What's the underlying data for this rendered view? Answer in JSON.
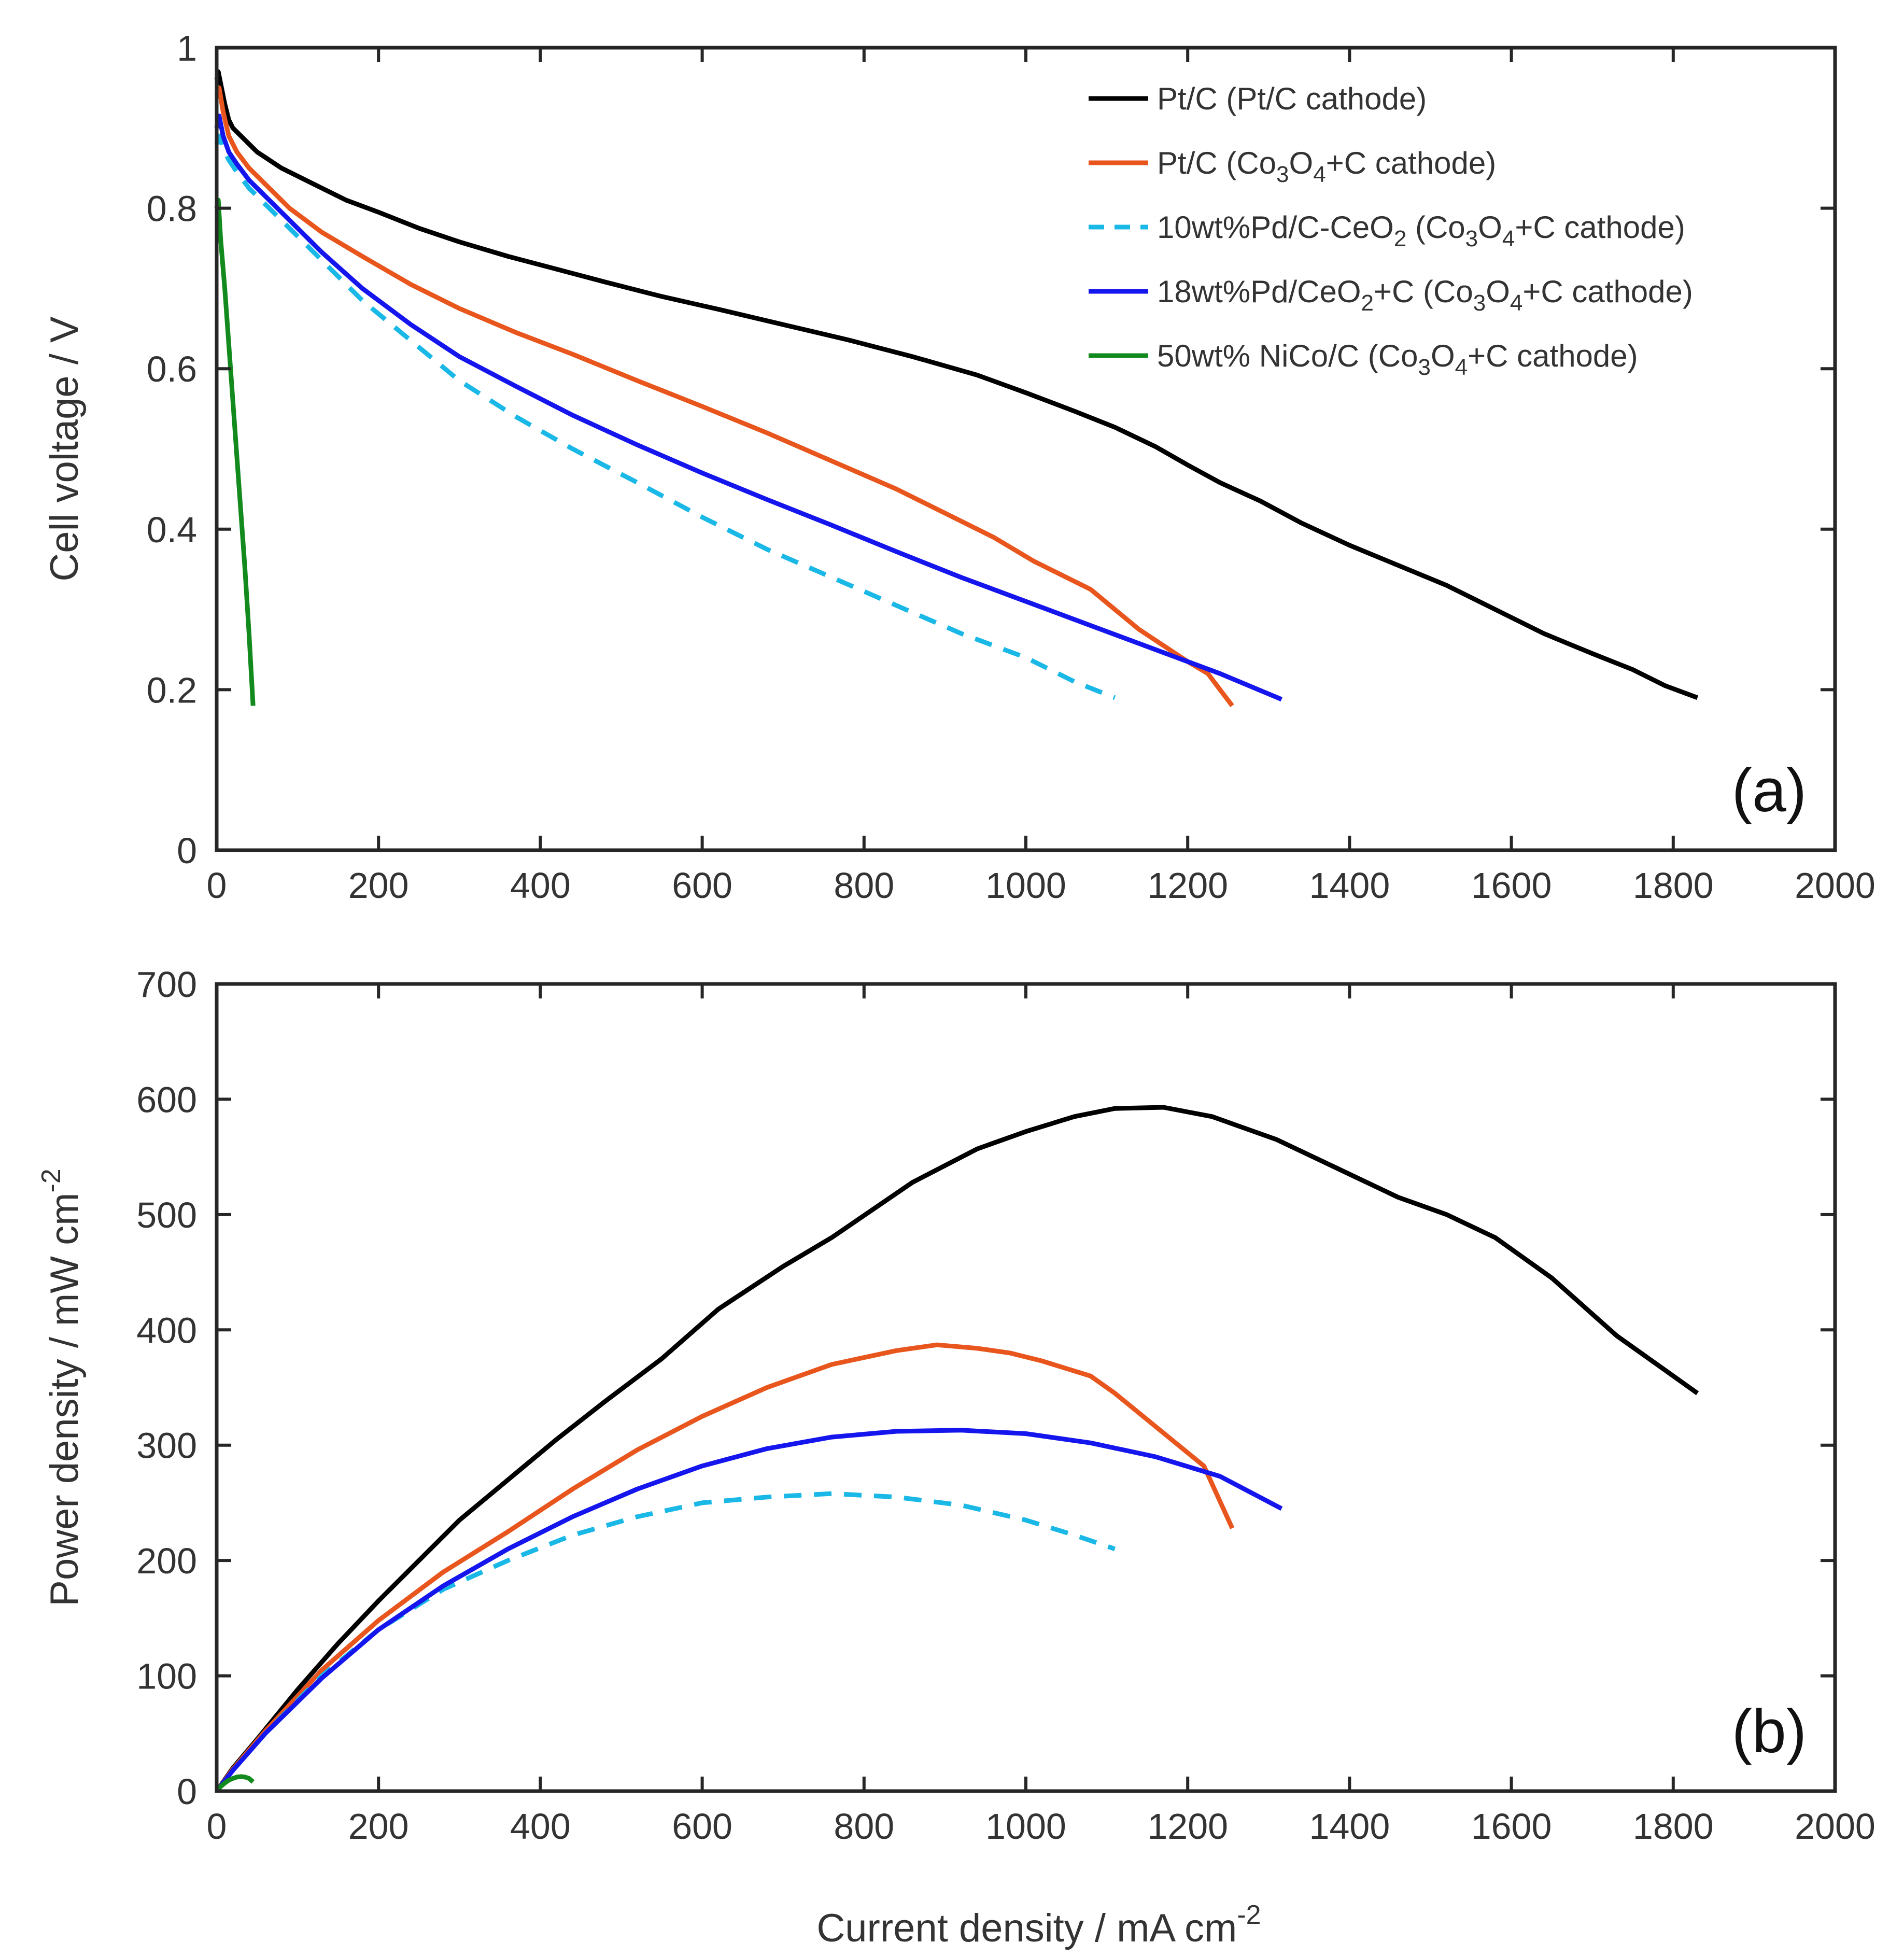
{
  "figure": {
    "xlabel_main": "Current density / mA cm",
    "xlabel_sup": "-2"
  },
  "chart_data": [
    {
      "id": "a",
      "type": "line",
      "panel_label": "(a)",
      "xlabel": "",
      "ylabel": "Cell voltage / V",
      "xlim": [
        0,
        2000
      ],
      "ylim": [
        0,
        1
      ],
      "xticks": [
        "0",
        "200",
        "400",
        "600",
        "800",
        "1000",
        "1200",
        "1400",
        "1600",
        "1800",
        "2000"
      ],
      "yticks": [
        "0",
        "0.2",
        "0.4",
        "0.6",
        "0.8",
        "1"
      ],
      "legend_position": "top-right",
      "series": [
        {
          "name": "Pt/C (Pt/C cathode)",
          "legend": [
            {
              "t": "Pt/C  (Pt/C cathode)"
            }
          ],
          "color": "#000000",
          "dash": "solid",
          "x": [
            0,
            2,
            5,
            10,
            15,
            20,
            30,
            50,
            80,
            120,
            160,
            200,
            250,
            300,
            360,
            420,
            480,
            550,
            620,
            700,
            780,
            860,
            940,
            1000,
            1060,
            1110,
            1160,
            1200,
            1240,
            1290,
            1340,
            1400,
            1460,
            1520,
            1580,
            1640,
            1700,
            1750,
            1790,
            1830
          ],
          "y": [
            0.96,
            0.97,
            0.955,
            0.93,
            0.91,
            0.9,
            0.89,
            0.87,
            0.85,
            0.83,
            0.81,
            0.795,
            0.775,
            0.758,
            0.74,
            0.724,
            0.708,
            0.69,
            0.674,
            0.655,
            0.636,
            0.615,
            0.592,
            0.57,
            0.547,
            0.527,
            0.503,
            0.48,
            0.458,
            0.435,
            0.408,
            0.38,
            0.355,
            0.33,
            0.3,
            0.27,
            0.245,
            0.225,
            0.205,
            0.19
          ]
        },
        {
          "name": "Pt/C (Co3O4+C cathode)",
          "legend": [
            {
              "t": "Pt/C  (Co"
            },
            {
              "t": "3",
              "s": "sub"
            },
            {
              "t": "O"
            },
            {
              "t": "4",
              "s": "sub"
            },
            {
              "t": "+C cathode)"
            }
          ],
          "color": "#e8561e",
          "dash": "solid",
          "x": [
            0,
            3,
            8,
            15,
            25,
            40,
            60,
            90,
            130,
            180,
            240,
            300,
            370,
            440,
            520,
            600,
            680,
            760,
            840,
            900,
            960,
            1010,
            1050,
            1080,
            1110,
            1140,
            1170,
            1200,
            1225,
            1240,
            1255
          ],
          "y": [
            0.94,
            0.95,
            0.92,
            0.89,
            0.87,
            0.85,
            0.83,
            0.8,
            0.77,
            0.74,
            0.705,
            0.675,
            0.645,
            0.618,
            0.585,
            0.553,
            0.52,
            0.485,
            0.45,
            0.42,
            0.39,
            0.36,
            0.34,
            0.325,
            0.3,
            0.275,
            0.255,
            0.235,
            0.22,
            0.2,
            0.18
          ]
        },
        {
          "name": "10wt%Pd/C-CeO2 (Co3O4+C cathode)",
          "legend": [
            {
              "t": "10wt%Pd/C-CeO"
            },
            {
              "t": "2",
              "s": "sub"
            },
            {
              "t": "  (Co"
            },
            {
              "t": "3",
              "s": "sub"
            },
            {
              "t": "O"
            },
            {
              "t": "4",
              "s": "sub"
            },
            {
              "t": "+C cathode)"
            }
          ],
          "color": "#1ab8e6",
          "dash": "dashed",
          "x": [
            0,
            3,
            8,
            15,
            25,
            40,
            60,
            90,
            130,
            180,
            240,
            300,
            370,
            440,
            520,
            600,
            680,
            760,
            840,
            920,
            1000,
            1060,
            1110
          ],
          "y": [
            0.88,
            0.89,
            0.875,
            0.86,
            0.845,
            0.825,
            0.805,
            0.775,
            0.735,
            0.685,
            0.635,
            0.585,
            0.54,
            0.5,
            0.458,
            0.415,
            0.375,
            0.34,
            0.305,
            0.27,
            0.24,
            0.21,
            0.19
          ]
        },
        {
          "name": "18wt%Pd/CeO2+C (Co3O4+C cathode)",
          "legend": [
            {
              "t": "18wt%Pd/CeO"
            },
            {
              "t": "2",
              "s": "sub"
            },
            {
              "t": "+C  (Co"
            },
            {
              "t": "3",
              "s": "sub"
            },
            {
              "t": "O"
            },
            {
              "t": "4",
              "s": "sub"
            },
            {
              "t": "+C cathode)"
            }
          ],
          "color": "#1515ee",
          "dash": "solid",
          "x": [
            0,
            3,
            8,
            15,
            25,
            40,
            60,
            90,
            130,
            180,
            240,
            300,
            370,
            440,
            520,
            600,
            680,
            760,
            840,
            920,
            1000,
            1080,
            1160,
            1240,
            1316
          ],
          "y": [
            0.9,
            0.915,
            0.89,
            0.87,
            0.855,
            0.835,
            0.815,
            0.785,
            0.745,
            0.7,
            0.655,
            0.615,
            0.578,
            0.542,
            0.505,
            0.47,
            0.437,
            0.405,
            0.372,
            0.34,
            0.31,
            0.28,
            0.25,
            0.22,
            0.188
          ]
        },
        {
          "name": "50wt% NiCo/C (Co3O4+C cathode)",
          "legend": [
            {
              "t": "50wt% NiCo/C  (Co"
            },
            {
              "t": "3",
              "s": "sub"
            },
            {
              "t": "O"
            },
            {
              "t": "4",
              "s": "sub"
            },
            {
              "t": "+C cathode)"
            }
          ],
          "color": "#138a1e",
          "dash": "solid",
          "x": [
            0,
            2,
            5,
            10,
            15,
            20,
            25,
            30,
            35,
            40,
            45
          ],
          "y": [
            0.8,
            0.81,
            0.76,
            0.7,
            0.63,
            0.56,
            0.49,
            0.42,
            0.35,
            0.27,
            0.18
          ]
        }
      ]
    },
    {
      "id": "b",
      "type": "line",
      "panel_label": "(b)",
      "xlabel": "Current density / mA cm-2",
      "ylabel": "Power density / mW cm",
      "ylabel_sup": "-2",
      "xlim": [
        0,
        2000
      ],
      "ylim": [
        0,
        700
      ],
      "xticks": [
        "0",
        "200",
        "400",
        "600",
        "800",
        "1000",
        "1200",
        "1400",
        "1600",
        "1800",
        "2000"
      ],
      "yticks": [
        "0",
        "100",
        "200",
        "300",
        "400",
        "500",
        "600",
        "700"
      ],
      "series": [
        {
          "name": "Pt/C (Pt/C cathode)",
          "color": "#000000",
          "dash": "solid",
          "x": [
            0,
            20,
            50,
            100,
            150,
            200,
            250,
            300,
            360,
            420,
            480,
            550,
            620,
            700,
            760,
            860,
            940,
            1000,
            1060,
            1110,
            1170,
            1230,
            1310,
            1400,
            1460,
            1520,
            1580,
            1650,
            1730,
            1790,
            1830
          ],
          "y": [
            0,
            20,
            45,
            88,
            128,
            165,
            200,
            235,
            270,
            305,
            338,
            375,
            418,
            455,
            480,
            528,
            557,
            572,
            585,
            592,
            593,
            585,
            565,
            535,
            515,
            500,
            480,
            445,
            395,
            365,
            345
          ]
        },
        {
          "name": "Pt/C (Co3O4+C cathode)",
          "color": "#e8561e",
          "dash": "solid",
          "x": [
            0,
            20,
            60,
            130,
            200,
            280,
            360,
            440,
            520,
            600,
            680,
            760,
            840,
            890,
            940,
            980,
            1020,
            1080,
            1110,
            1220,
            1255
          ],
          "y": [
            0,
            19,
            52,
            105,
            148,
            190,
            225,
            262,
            296,
            325,
            350,
            370,
            382,
            387,
            384,
            380,
            373,
            360,
            345,
            282,
            228
          ]
        },
        {
          "name": "10wt%Pd/C-CeO2 (Co3O4+C cathode)",
          "color": "#1ab8e6",
          "dash": "dashed",
          "x": [
            0,
            20,
            60,
            130,
            200,
            280,
            360,
            440,
            520,
            600,
            680,
            760,
            840,
            920,
            1000,
            1060,
            1110
          ],
          "y": [
            0,
            18,
            50,
            100,
            140,
            175,
            200,
            222,
            238,
            250,
            255,
            258,
            255,
            248,
            235,
            222,
            210
          ]
        },
        {
          "name": "18wt%Pd/CeO2+C (Co3O4+C cathode)",
          "color": "#1515ee",
          "dash": "solid",
          "x": [
            0,
            20,
            60,
            130,
            200,
            280,
            360,
            440,
            520,
            600,
            680,
            760,
            840,
            920,
            1000,
            1080,
            1160,
            1240,
            1316
          ],
          "y": [
            0,
            18,
            50,
            98,
            140,
            178,
            210,
            238,
            262,
            282,
            297,
            307,
            312,
            313,
            310,
            302,
            290,
            273,
            245
          ]
        },
        {
          "name": "50wt% NiCo/C (Co3O4+C cathode)",
          "color": "#138a1e",
          "dash": "solid",
          "x": [
            0,
            5,
            10,
            15,
            20,
            25,
            30,
            35,
            40,
            45
          ],
          "y": [
            0,
            4,
            7,
            9.5,
            11,
            12.2,
            12.6,
            12.2,
            11,
            8
          ]
        }
      ]
    }
  ]
}
